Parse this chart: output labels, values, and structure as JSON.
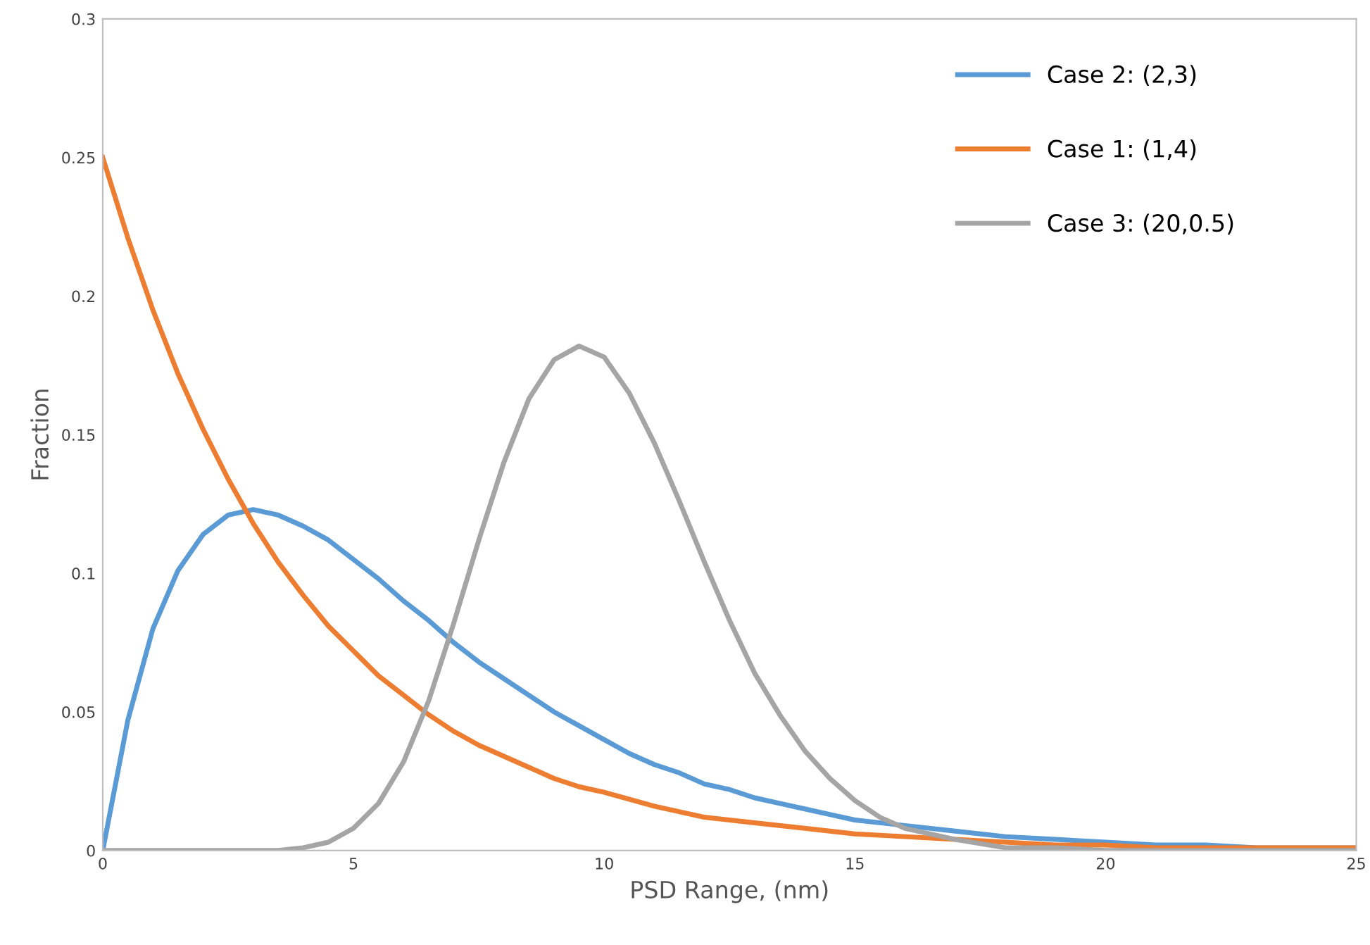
{
  "chart_data": {
    "type": "line",
    "xlabel": "PSD Range, (nm)",
    "ylabel": "Fraction",
    "xlim": [
      0,
      25
    ],
    "xticks": [
      0,
      5,
      10,
      15,
      20,
      25
    ],
    "ylim": [
      0,
      0.3
    ],
    "yticks": [
      0,
      0.05,
      0.1,
      0.15,
      0.2,
      0.25,
      0.3
    ],
    "grid": false,
    "legend": "top right",
    "marker": "none",
    "line_style": "solid",
    "series": [
      {
        "name": "Case 2: (2,3)",
        "color": "#5b9bd5",
        "x": [
          0,
          0.5,
          1,
          1.5,
          2,
          2.5,
          3,
          3.5,
          4,
          4.5,
          5,
          5.5,
          6,
          6.5,
          7,
          7.5,
          8,
          8.5,
          9,
          9.5,
          10,
          10.5,
          11,
          11.5,
          12,
          12.5,
          13,
          13.5,
          14,
          14.5,
          15,
          16,
          17,
          18,
          19,
          20,
          21,
          22,
          23,
          24,
          25
        ],
        "values": [
          0,
          0.047,
          0.08,
          0.101,
          0.114,
          0.121,
          0.123,
          0.121,
          0.117,
          0.112,
          0.105,
          0.098,
          0.09,
          0.083,
          0.075,
          0.068,
          0.062,
          0.056,
          0.05,
          0.045,
          0.04,
          0.035,
          0.031,
          0.028,
          0.024,
          0.022,
          0.019,
          0.017,
          0.015,
          0.013,
          0.011,
          0.009,
          0.007,
          0.005,
          0.004,
          0.003,
          0.002,
          0.002,
          0.001,
          0.001,
          0.001
        ]
      },
      {
        "name": "Case 1: (1,4)",
        "color": "#ed7d31",
        "x": [
          0,
          0.5,
          1,
          1.5,
          2,
          2.5,
          3,
          3.5,
          4,
          4.5,
          5,
          5.5,
          6,
          6.5,
          7,
          7.5,
          8,
          8.5,
          9,
          9.5,
          10,
          11,
          12,
          13,
          14,
          15,
          16,
          17,
          18,
          19,
          20,
          21,
          22,
          23,
          24,
          25
        ],
        "values": [
          0.25,
          0.221,
          0.195,
          0.172,
          0.152,
          0.134,
          0.118,
          0.104,
          0.092,
          0.081,
          0.072,
          0.063,
          0.056,
          0.049,
          0.043,
          0.038,
          0.034,
          0.03,
          0.026,
          0.023,
          0.021,
          0.016,
          0.012,
          0.01,
          0.008,
          0.006,
          0.005,
          0.004,
          0.003,
          0.002,
          0.002,
          0.001,
          0.001,
          0.001,
          0.001,
          0.001
        ]
      },
      {
        "name": "Case 3: (20,0.5)",
        "color": "#a5a5a5",
        "x": [
          0,
          1,
          2,
          3,
          3.5,
          4,
          4.5,
          5,
          5.5,
          6,
          6.5,
          7,
          7.5,
          8,
          8.5,
          9,
          9.5,
          10,
          10.5,
          11,
          11.5,
          12,
          12.5,
          13,
          13.5,
          14,
          14.5,
          15,
          15.5,
          16,
          17,
          18,
          19,
          20,
          21,
          22,
          23,
          24,
          25
        ],
        "values": [
          0,
          0,
          0,
          0,
          0,
          0.001,
          0.003,
          0.008,
          0.017,
          0.032,
          0.054,
          0.082,
          0.112,
          0.14,
          0.163,
          0.177,
          0.182,
          0.178,
          0.165,
          0.147,
          0.126,
          0.104,
          0.083,
          0.064,
          0.049,
          0.036,
          0.026,
          0.018,
          0.012,
          0.008,
          0.004,
          0.001,
          0.001,
          0,
          0,
          0,
          0,
          0,
          0
        ]
      }
    ]
  }
}
